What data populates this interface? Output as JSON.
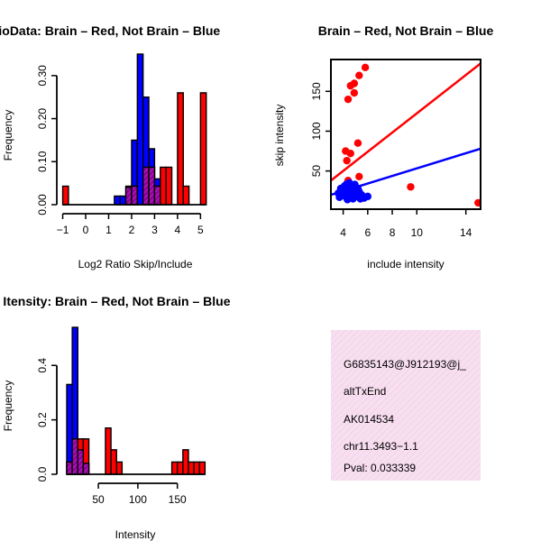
{
  "chart_data": [
    {
      "type": "histogram",
      "title": "RatioData: Brain – Red, Not Brain – Blue",
      "xlabel": "Log2 Ratio Skip/Include",
      "ylabel": "Frequency",
      "xlim": [
        -1.1,
        5.3
      ],
      "ylim": [
        0,
        0.35
      ],
      "xticks": [
        -1,
        0,
        1,
        2,
        3,
        4,
        5
      ],
      "xtick_labels": [
        "−1",
        "0",
        "1",
        "2",
        "3",
        "4",
        "5"
      ],
      "yticks": [
        0.0,
        0.1,
        0.2,
        0.3
      ],
      "ytick_labels": [
        "0.00",
        "0.10",
        "0.20",
        "0.30"
      ],
      "bin_edges": [
        -1.0,
        -0.75,
        -0.5,
        -0.25,
        0.0,
        0.25,
        0.5,
        0.75,
        1.0,
        1.25,
        1.5,
        1.75,
        2.0,
        2.25,
        2.5,
        2.75,
        3.0,
        3.25,
        3.5,
        3.75,
        4.0,
        4.25,
        4.5,
        4.75,
        5.0,
        5.25
      ],
      "series": [
        {
          "name": "Not Brain",
          "color": "#0000ff",
          "values": [
            0,
            0,
            0,
            0,
            0,
            0,
            0,
            0,
            0,
            0.02,
            0.02,
            0.04,
            0.15,
            0.35,
            0.25,
            0.13,
            0.06,
            0,
            0,
            0,
            0,
            0,
            0,
            0,
            0
          ]
        },
        {
          "name": "Brain",
          "color": "#ff0000",
          "values": [
            0.043,
            0,
            0,
            0,
            0,
            0,
            0,
            0,
            0,
            0,
            0,
            0.043,
            0.043,
            0,
            0.087,
            0.087,
            0.043,
            0.087,
            0.087,
            0,
            0.26,
            0.043,
            0,
            0,
            0.26
          ]
        }
      ]
    },
    {
      "type": "scatter",
      "title": "Brain – Red, Not Brain – Blue",
      "xlabel": "include intensity",
      "ylabel": "skip intensity",
      "xlim": [
        3,
        15.2
      ],
      "ylim": [
        2,
        190
      ],
      "xticks": [
        4,
        6,
        8,
        10,
        14
      ],
      "xtick_labels": [
        "4",
        "6",
        "8",
        "10",
        "14"
      ],
      "yticks": [
        50,
        100,
        150
      ],
      "ytick_labels": [
        "50",
        "100",
        "150"
      ],
      "series": [
        {
          "name": "Brain",
          "color": "#ff0000",
          "points": [
            [
              5.8,
              180
            ],
            [
              5.3,
              170
            ],
            [
              4.9,
              160
            ],
            [
              4.6,
              157
            ],
            [
              4.9,
              148
            ],
            [
              4.4,
              140
            ],
            [
              5.2,
              85
            ],
            [
              4.2,
              75
            ],
            [
              4.6,
              72
            ],
            [
              4.3,
              63
            ],
            [
              4.4,
              38
            ],
            [
              5.3,
              43
            ],
            [
              4.3,
              30
            ],
            [
              9.5,
              30
            ],
            [
              15.0,
              10
            ]
          ],
          "fit": [
            [
              3.0,
              38
            ],
            [
              15.2,
              185
            ]
          ]
        },
        {
          "name": "Not Brain",
          "color": "#0000ff",
          "points": [
            [
              3.6,
              22
            ],
            [
              3.8,
              28
            ],
            [
              3.9,
              20
            ],
            [
              4.0,
              25
            ],
            [
              4.1,
              31
            ],
            [
              4.2,
              18
            ],
            [
              4.3,
              27
            ],
            [
              4.4,
              22
            ],
            [
              4.5,
              35
            ],
            [
              4.6,
              24
            ],
            [
              4.7,
              20
            ],
            [
              4.8,
              30
            ],
            [
              4.9,
              26
            ],
            [
              5.0,
              22
            ],
            [
              5.1,
              18
            ],
            [
              5.2,
              28
            ],
            [
              5.3,
              24
            ],
            [
              5.5,
              20
            ],
            [
              5.7,
              16
            ],
            [
              6.0,
              18
            ],
            [
              4.35,
              14
            ],
            [
              4.8,
              15
            ],
            [
              5.4,
              15
            ],
            [
              3.7,
              17
            ],
            [
              4.1,
              21
            ],
            [
              4.55,
              29
            ],
            [
              4.25,
              33
            ],
            [
              4.95,
              33
            ],
            [
              3.95,
              24
            ],
            [
              4.65,
              17
            ]
          ],
          "fit": [
            [
              3.0,
              20
            ],
            [
              15.2,
              78
            ]
          ]
        }
      ]
    },
    {
      "type": "histogram",
      "title": "Gene Itensity: Brain – Red, Not Brain – Blue",
      "xlabel": "Intensity",
      "ylabel": "Frequency",
      "xlim": [
        2,
        188
      ],
      "ylim": [
        0,
        0.55
      ],
      "xticks": [
        50,
        100,
        150
      ],
      "xtick_labels": [
        "50",
        "100",
        "150"
      ],
      "yticks": [
        0.0,
        0.2,
        0.4
      ],
      "ytick_labels": [
        "0.0",
        "0.2",
        "0.4"
      ],
      "bin_edges": [
        10,
        17,
        24,
        31,
        38,
        45,
        52,
        59,
        66,
        73,
        80,
        87,
        94,
        101,
        108,
        115,
        122,
        129,
        136,
        143,
        150,
        157,
        164,
        171,
        178,
        185
      ],
      "series": [
        {
          "name": "Not Brain",
          "color": "#0000ff",
          "values": [
            0.33,
            0.54,
            0.09,
            0.04,
            0,
            0,
            0,
            0,
            0,
            0,
            0,
            0,
            0,
            0,
            0,
            0,
            0,
            0,
            0,
            0,
            0,
            0,
            0,
            0,
            0
          ]
        },
        {
          "name": "Brain",
          "color": "#ff0000",
          "values": [
            0.045,
            0.13,
            0.13,
            0.13,
            0,
            0,
            0,
            0.17,
            0.09,
            0.045,
            0,
            0,
            0,
            0,
            0,
            0,
            0,
            0,
            0,
            0.045,
            0.045,
            0.09,
            0.045,
            0.045,
            0.045
          ]
        }
      ]
    }
  ],
  "info_panel": {
    "lines": [
      "G6835143@J912193@j_",
      "altTxEnd",
      "AK014534",
      "chr11.3493−1.1"
    ],
    "pval": "Pval: 0.033339",
    "pval_color": "#8b0000",
    "background": "#f7dff0"
  },
  "colors": {
    "brain": "#ff0000",
    "not_brain": "#0000ff",
    "overlap": "#aa00aa"
  }
}
